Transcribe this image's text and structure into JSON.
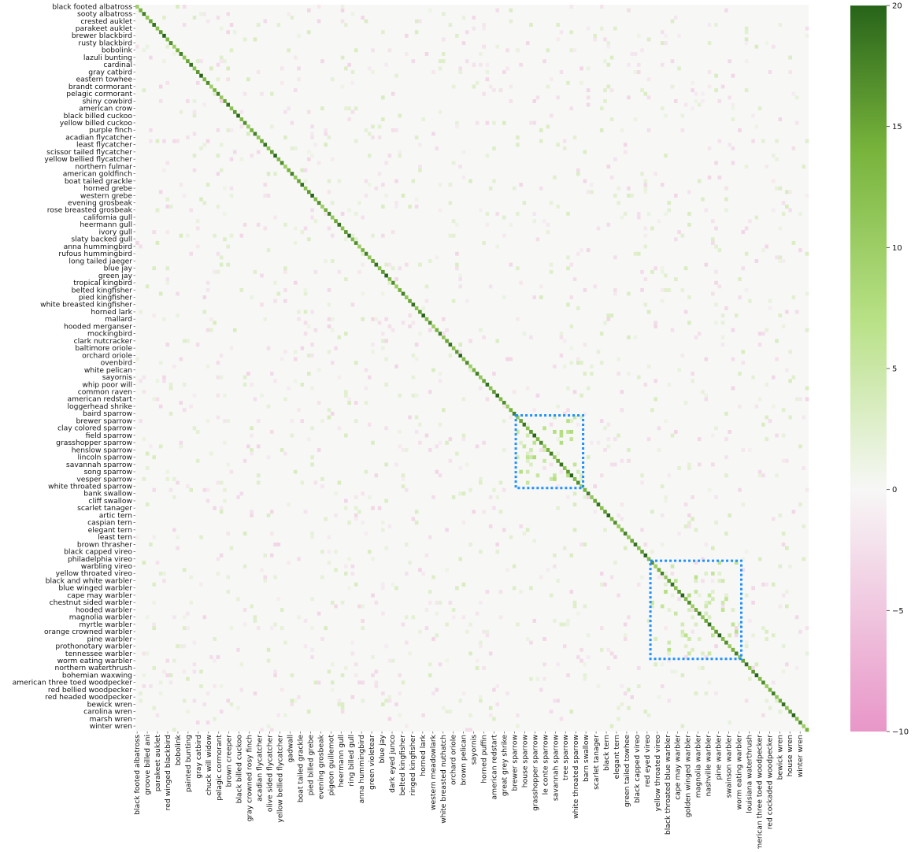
{
  "chart_data": {
    "type": "heatmap",
    "title": "",
    "xlabel": "",
    "ylabel": "",
    "n_classes": 200,
    "row_tick_labels": [
      "black footed albatross",
      "sooty albatross",
      "crested auklet",
      "parakeet auklet",
      "brewer blackbird",
      "rusty blackbird",
      "bobolink",
      "lazuli bunting",
      "cardinal",
      "gray catbird",
      "eastern towhee",
      "brandt cormorant",
      "pelagic cormorant",
      "shiny cowbird",
      "american crow",
      "black billed cuckoo",
      "yellow billed cuckoo",
      "purple finch",
      "acadian flycatcher",
      "least flycatcher",
      "scissor tailed flycatcher",
      "yellow bellied flycatcher",
      "northern fulmar",
      "american goldfinch",
      "boat tailed grackle",
      "horned grebe",
      "western grebe",
      "evening grosbeak",
      "rose breasted grosbeak",
      "california gull",
      "heermann gull",
      "ivory gull",
      "slaty backed gull",
      "anna hummingbird",
      "rufous hummingbird",
      "long tailed jaeger",
      "blue jay",
      "green jay",
      "tropical kingbird",
      "belted kingfisher",
      "pied kingfisher",
      "white breasted kingfisher",
      "horned lark",
      "mallard",
      "hooded merganser",
      "mockingbird",
      "clark nutcracker",
      "baltimore oriole",
      "orchard oriole",
      "ovenbird",
      "white pelican",
      "sayornis",
      "whip poor will",
      "common raven",
      "american redstart",
      "loggerhead shrike",
      "baird sparrow",
      "brewer sparrow",
      "clay colored sparrow",
      "field sparrow",
      "grasshopper sparrow",
      "henslow sparrow",
      "lincoln sparrow",
      "savannah sparrow",
      "song sparrow",
      "vesper sparrow",
      "white throated sparrow",
      "bank swallow",
      "cliff swallow",
      "scarlet tanager",
      "artic tern",
      "caspian tern",
      "elegant tern",
      "least tern",
      "brown thrasher",
      "black capped vireo",
      "philadelphia vireo",
      "warbling vireo",
      "yellow throated vireo",
      "black and white warbler",
      "blue winged warbler",
      "cape may warbler",
      "chestnut sided warbler",
      "hooded warbler",
      "magnolia warbler",
      "myrtle warbler",
      "orange crowned warbler",
      "pine warbler",
      "prothonotary warbler",
      "tennessee warbler",
      "worm eating warbler",
      "northern waterthrush",
      "bohemian waxwing",
      "american three toed woodpecker",
      "red bellied woodpecker",
      "red headed woodpecker",
      "bewick wren",
      "carolina wren",
      "marsh wren",
      "winter wren"
    ],
    "col_tick_labels": [
      "black footed albatross",
      "groove billed ani",
      "parakeet auklet",
      "red winged blackbird",
      "bobolink",
      "painted bunting",
      "gray catbird",
      "chuck will widow",
      "pelagic cormorant",
      "brown creeper",
      "black billed cuckoo",
      "gray crowned rosy finch",
      "acadian flycatcher",
      "olive sided flycatcher",
      "yellow bellied flycatcher",
      "gadwall",
      "boat tailed grackle",
      "pied billed grebe",
      "evening grosbeak",
      "pigeon guillemot",
      "heermann gull",
      "ring billed gull",
      "anna hummingbird",
      "green violetear",
      "blue jay",
      "dark eyed junco",
      "belted kingfisher",
      "ringed kingfisher",
      "horned lark",
      "western meadowlark",
      "white breasted nuthatch",
      "orchard oriole",
      "brown pelican",
      "sayornis",
      "horned puffin",
      "american redstart",
      "great grey shrike",
      "brewer sparrow",
      "house sparrow",
      "grasshopper sparrow",
      "le conte sparrow",
      "savannah sparrow",
      "tree sparrow",
      "white throated sparrow",
      "barn swallow",
      "scarlet tanager",
      "black tern",
      "elegant tern",
      "green tailed towhee",
      "black capped vireo",
      "red eyed vireo",
      "yellow throated vireo",
      "black throated blue warbler",
      "cape may warbler",
      "golden winged warbler",
      "magnolia warbler",
      "nashville warbler",
      "pine warbler",
      "swainson warbler",
      "worm eating warbler",
      "louisiana waterthrush",
      "american three toed woodpecker",
      "red cockaded woodpecker",
      "bewick wren",
      "house wren",
      "winter wren"
    ],
    "value_range": [
      -10,
      20
    ],
    "colorbar": {
      "ticks": [
        20,
        15,
        10,
        5,
        0,
        -5,
        -10
      ],
      "tick_labels": [
        "20",
        "15",
        "10",
        "5",
        "0",
        "−5",
        "−10"
      ],
      "colormap": "PiYG",
      "colors": [
        "#e896c8",
        "#f7f7f6",
        "#276419"
      ]
    },
    "diagonal_values": "high (about 10 to 20) for every class",
    "highlight_boxes": [
      {
        "rows": [
          "baird sparrow",
          "white throated sparrow"
        ],
        "cols": [
          "great grey shrike",
          "white throated sparrow"
        ],
        "color": "#1e90ff",
        "style": "dotted"
      },
      {
        "rows": [
          "warbling vireo",
          "worm eating warbler"
        ],
        "cols": [
          "red eyed vireo",
          "worm eating warbler"
        ],
        "color": "#1e90ff",
        "style": "dotted"
      }
    ],
    "grid": false
  }
}
